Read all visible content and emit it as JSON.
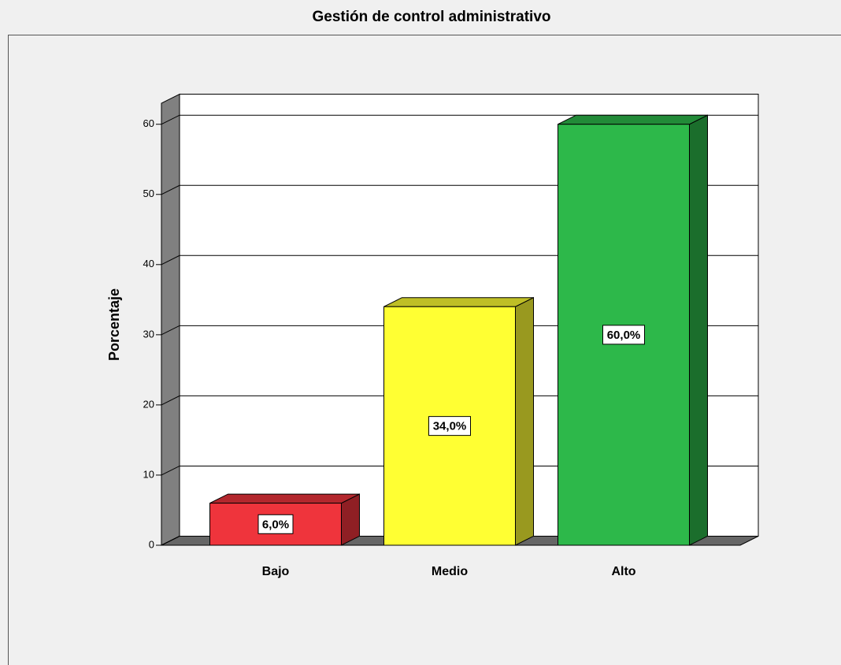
{
  "chart_data": {
    "type": "bar3d",
    "title": "Gestión de control administrativo",
    "y_label": "Porcentaje",
    "categories": [
      "Bajo",
      "Medio",
      "Alto"
    ],
    "values": [
      6,
      34,
      60
    ],
    "value_labels": [
      "6,0%",
      "34,0%",
      "60,0%"
    ],
    "colors": [
      "#ef343c",
      "#ffff33",
      "#2db84a"
    ],
    "ylim": [
      0,
      63
    ],
    "yticks": [
      0,
      10,
      20,
      30,
      40,
      50,
      60
    ],
    "grid": true
  }
}
